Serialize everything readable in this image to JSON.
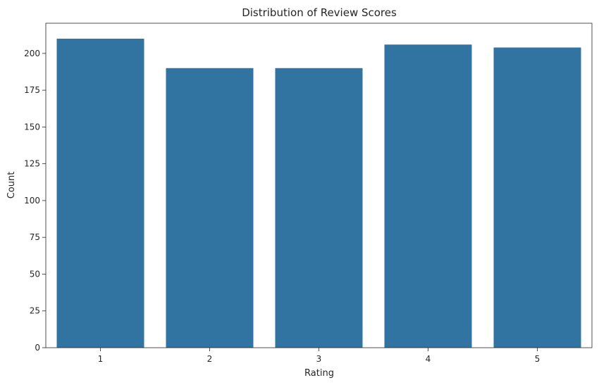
{
  "chart_data": {
    "type": "bar",
    "title": "Distribution of Review Scores",
    "xlabel": "Rating",
    "ylabel": "Count",
    "categories": [
      "1",
      "2",
      "3",
      "4",
      "5"
    ],
    "values": [
      210,
      190,
      190,
      206,
      204
    ],
    "ylim": [
      0,
      220.5
    ],
    "yticks": [
      0,
      25,
      50,
      75,
      100,
      125,
      150,
      175,
      200
    ],
    "bar_color": "#3274a1",
    "grid": false,
    "legend": "none"
  }
}
